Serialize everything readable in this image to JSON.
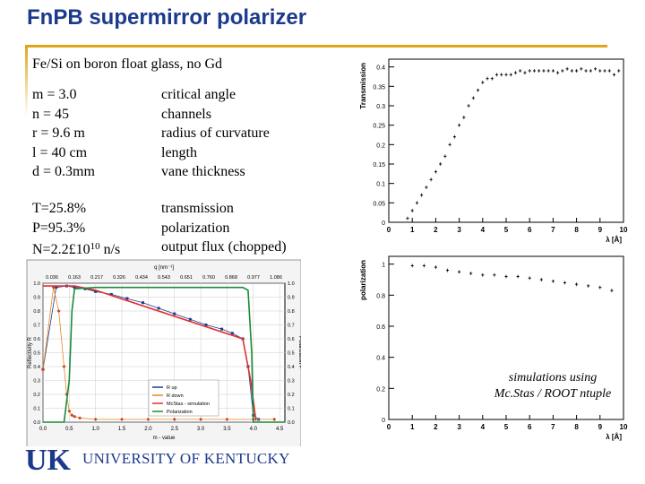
{
  "slide": {
    "title": "FnPB supermirror polarizer",
    "subtitle": "Fe/Si on boron float glass, no Gd",
    "params_left": [
      "m = 3.0",
      "n  = 45",
      "r   = 9.6 m",
      "l   = 40 cm",
      "d  = 0.3mm"
    ],
    "params_right": [
      "critical angle",
      "channels",
      "radius of curvature",
      "length",
      "vane thickness"
    ],
    "results_left": {
      "t": "T=25.8%",
      "p": "P=95.3%",
      "n_prefix": "N=2.2£10",
      "n_exp": "10",
      "n_unit": " n/s"
    },
    "results_right": [
      "transmission",
      "polarization",
      "output flux (chopped)"
    ],
    "note_line1": "simulations using",
    "note_line2": "Mc.Stas / ROOT ntuple",
    "university": "UNIVERSITY OF KENTUCKY",
    "logo_text": "UK"
  },
  "chart_data": [
    {
      "type": "scatter",
      "ylabel": "Transmission",
      "xlabel": "λ [Å]",
      "xlim": [
        0,
        10
      ],
      "ylim": [
        0,
        0.42
      ],
      "x_ticks": [
        "0",
        "1",
        "2",
        "3",
        "4",
        "5",
        "6",
        "7",
        "8",
        "9",
        "10"
      ],
      "y_ticks": [
        "0",
        "0.05",
        "0.1",
        "0.15",
        "0.2",
        "0.25",
        "0.3",
        "0.35",
        "0.4"
      ],
      "x": [
        0.8,
        1.0,
        1.2,
        1.4,
        1.6,
        1.8,
        2.0,
        2.2,
        2.4,
        2.6,
        2.8,
        3.0,
        3.2,
        3.4,
        3.6,
        3.8,
        4.0,
        4.2,
        4.4,
        4.6,
        4.8,
        5.0,
        5.2,
        5.4,
        5.6,
        5.8,
        6.0,
        6.2,
        6.4,
        6.6,
        6.8,
        7.0,
        7.2,
        7.4,
        7.6,
        7.8,
        8.0,
        8.2,
        8.4,
        8.6,
        8.8,
        9.0,
        9.2,
        9.4,
        9.6,
        9.8
      ],
      "y": [
        0.01,
        0.03,
        0.05,
        0.07,
        0.09,
        0.11,
        0.13,
        0.15,
        0.17,
        0.2,
        0.22,
        0.25,
        0.27,
        0.3,
        0.32,
        0.34,
        0.36,
        0.37,
        0.37,
        0.38,
        0.38,
        0.38,
        0.38,
        0.385,
        0.39,
        0.385,
        0.39,
        0.39,
        0.39,
        0.39,
        0.39,
        0.39,
        0.385,
        0.39,
        0.395,
        0.39,
        0.39,
        0.395,
        0.39,
        0.39,
        0.395,
        0.39,
        0.39,
        0.39,
        0.38,
        0.39
      ]
    },
    {
      "type": "scatter",
      "ylabel": "polarization",
      "xlabel": "λ [Å]",
      "xlim": [
        0,
        10
      ],
      "ylim": [
        0,
        1.05
      ],
      "x_ticks": [
        "0",
        "1",
        "2",
        "3",
        "4",
        "5",
        "6",
        "7",
        "8",
        "9",
        "10"
      ],
      "y_ticks": [
        "0",
        "0.2",
        "0.4",
        "0.6",
        "0.8",
        "1"
      ],
      "x": [
        1.0,
        1.5,
        2.0,
        2.5,
        3.0,
        3.5,
        4.0,
        4.5,
        5.0,
        5.5,
        6.0,
        6.5,
        7.0,
        7.5,
        8.0,
        8.5,
        9.0,
        9.5
      ],
      "y": [
        0.99,
        0.99,
        0.98,
        0.96,
        0.95,
        0.94,
        0.93,
        0.93,
        0.92,
        0.92,
        0.91,
        0.9,
        0.89,
        0.88,
        0.87,
        0.86,
        0.85,
        0.83
      ]
    },
    {
      "type": "line",
      "xlabel": "m - value",
      "top_axis_label": "q [nm⁻¹]",
      "ylabel": "Reflectivity R",
      "y2label": "Polarization P",
      "xlim": [
        0,
        4.6
      ],
      "ylim": [
        0,
        1.0
      ],
      "x_ticks": [
        "0.0",
        "0.5",
        "1.0",
        "1.5",
        "2.0",
        "2.5",
        "3.0",
        "3.5",
        "4.0",
        "4.5"
      ],
      "y_ticks": [
        "0.0",
        "0.1",
        "0.2",
        "0.3",
        "0.4",
        "0.5",
        "0.6",
        "0.7",
        "0.8",
        "0.9",
        "1.0"
      ],
      "top_ticks": [
        "0.036",
        "0.163",
        "0.217",
        "0.326",
        "0.434",
        "0.543",
        "0.651",
        "0.760",
        "0.868",
        "0.977",
        "1.086"
      ],
      "legend": [
        "R up",
        "R down",
        "McStas - simulation",
        "Polarization"
      ],
      "series": [
        {
          "name": "R up",
          "x": [
            0.0,
            0.25,
            0.45,
            0.6,
            0.8,
            1.0,
            1.3,
            1.6,
            1.9,
            2.2,
            2.5,
            2.8,
            3.1,
            3.4,
            3.6,
            3.8,
            3.9,
            4.0,
            4.1
          ],
          "y": [
            0.38,
            0.97,
            0.98,
            0.97,
            0.96,
            0.94,
            0.92,
            0.89,
            0.86,
            0.82,
            0.78,
            0.74,
            0.7,
            0.67,
            0.64,
            0.6,
            0.4,
            0.05,
            0.02
          ]
        },
        {
          "name": "R down",
          "x": [
            0.0,
            0.2,
            0.3,
            0.4,
            0.45,
            0.5,
            0.55,
            0.6,
            0.7,
            1.0,
            1.5,
            2.0,
            2.5,
            3.0,
            3.5,
            4.0,
            4.4
          ],
          "y": [
            0.38,
            0.97,
            0.8,
            0.4,
            0.2,
            0.08,
            0.05,
            0.04,
            0.03,
            0.02,
            0.02,
            0.02,
            0.02,
            0.02,
            0.02,
            0.02,
            0.02
          ]
        },
        {
          "name": "McStas - simulation",
          "x": [
            0.0,
            0.6,
            1.0,
            3.8,
            3.95,
            4.05
          ],
          "y": [
            0.98,
            0.98,
            0.95,
            0.6,
            0.3,
            0.01
          ]
        },
        {
          "name": "Polarization",
          "x": [
            0.0,
            0.4,
            0.5,
            0.55,
            0.6,
            1.0,
            2.0,
            3.0,
            3.8,
            3.9,
            3.97,
            4.0,
            4.6
          ],
          "y": [
            0.0,
            0.0,
            0.3,
            0.8,
            0.96,
            0.97,
            0.97,
            0.97,
            0.97,
            0.95,
            0.5,
            0.0,
            0.0
          ]
        }
      ]
    }
  ]
}
